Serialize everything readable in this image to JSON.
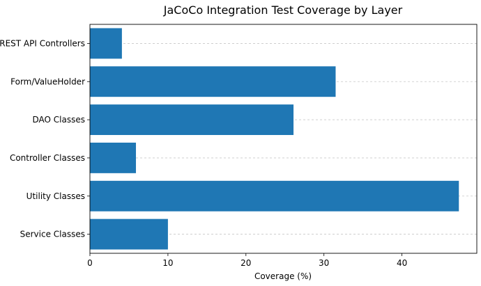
{
  "chart_data": {
    "type": "bar",
    "orientation": "horizontal",
    "title": "JaCoCo Integration Test Coverage by Layer",
    "xlabel": "Coverage (%)",
    "ylabel": "",
    "categories": [
      "REST API Controllers",
      "Form/ValueHolder",
      "DAO Classes",
      "Controller Classes",
      "Utility Classes",
      "Service Classes"
    ],
    "values": [
      4.1,
      31.5,
      26.1,
      5.9,
      47.3,
      10.0
    ],
    "xlim": [
      0,
      49.6
    ],
    "xticks": [
      0,
      10,
      20,
      30,
      40
    ],
    "bar_color": "#1f77b4",
    "grid": "x dashed, light gray"
  }
}
